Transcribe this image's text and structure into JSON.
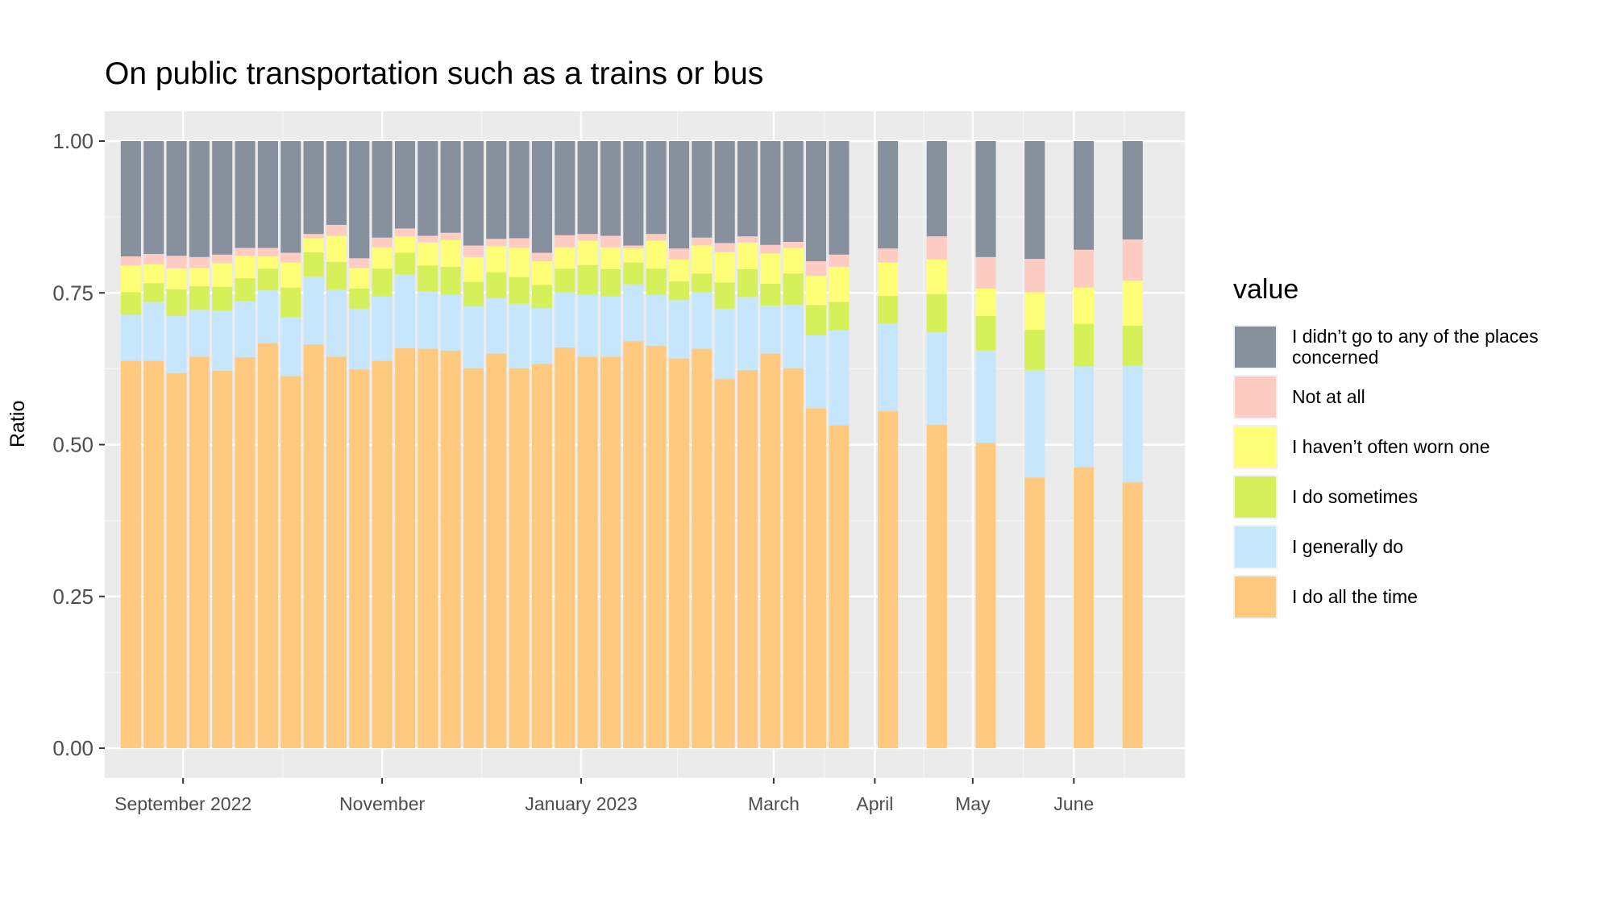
{
  "chart_data": {
    "type": "bar",
    "title": "On public transportation such as a trains or bus",
    "xlabel": "",
    "ylabel": "Ratio",
    "ylim": [
      0,
      1
    ],
    "yticks": [
      "0.00",
      "0.25",
      "0.50",
      "0.75",
      "1.00"
    ],
    "stacked": true,
    "grid": true,
    "legend_title": "value",
    "legend_position": "right",
    "x_axis_type": "date",
    "xlim": [
      "2022-08-08",
      "2023-07-05"
    ],
    "x_ticks": [
      {
        "date": "2022-09-01",
        "label": "September 2022"
      },
      {
        "date": "2022-11-01",
        "label": "November"
      },
      {
        "date": "2023-01-01",
        "label": "January 2023"
      },
      {
        "date": "2023-03-01",
        "label": "March"
      },
      {
        "date": "2023-04-01",
        "label": "April"
      },
      {
        "date": "2023-05-01",
        "label": "May"
      },
      {
        "date": "2023-06-01",
        "label": "June"
      }
    ],
    "x": [
      "2022-08-16",
      "2022-08-23",
      "2022-08-30",
      "2022-09-06",
      "2022-09-13",
      "2022-09-20",
      "2022-09-27",
      "2022-10-04",
      "2022-10-11",
      "2022-10-18",
      "2022-10-25",
      "2022-11-01",
      "2022-11-08",
      "2022-11-15",
      "2022-11-22",
      "2022-11-29",
      "2022-12-06",
      "2022-12-13",
      "2022-12-20",
      "2022-12-27",
      "2023-01-03",
      "2023-01-10",
      "2023-01-17",
      "2023-01-24",
      "2023-01-31",
      "2023-02-07",
      "2023-02-14",
      "2023-02-21",
      "2023-02-28",
      "2023-03-07",
      "2023-03-14",
      "2023-03-21",
      "2023-04-05",
      "2023-04-20",
      "2023-05-05",
      "2023-05-20",
      "2023-06-04",
      "2023-06-19"
    ],
    "series": [
      {
        "name": "I do all the time",
        "color": "#ffca80",
        "values": [
          0.638,
          0.638,
          0.618,
          0.645,
          0.622,
          0.644,
          0.667,
          0.613,
          0.665,
          0.645,
          0.624,
          0.638,
          0.659,
          0.658,
          0.655,
          0.626,
          0.65,
          0.626,
          0.633,
          0.66,
          0.645,
          0.645,
          0.67,
          0.663,
          0.642,
          0.658,
          0.608,
          0.623,
          0.65,
          0.626,
          0.56,
          0.532,
          0.555,
          0.533,
          0.503,
          0.446,
          0.463,
          0.438
        ]
      },
      {
        "name": "I generally do",
        "color": "#c6e6fd",
        "values": [
          0.076,
          0.097,
          0.094,
          0.077,
          0.098,
          0.093,
          0.087,
          0.097,
          0.112,
          0.11,
          0.1,
          0.106,
          0.121,
          0.094,
          0.092,
          0.102,
          0.091,
          0.106,
          0.092,
          0.091,
          0.102,
          0.099,
          0.094,
          0.084,
          0.096,
          0.093,
          0.116,
          0.12,
          0.079,
          0.104,
          0.12,
          0.156,
          0.145,
          0.152,
          0.152,
          0.177,
          0.166,
          0.192
        ]
      },
      {
        "name": "I do sometimes",
        "color": "#d6f05a",
        "values": [
          0.037,
          0.031,
          0.044,
          0.039,
          0.04,
          0.037,
          0.036,
          0.049,
          0.04,
          0.046,
          0.033,
          0.046,
          0.036,
          0.043,
          0.046,
          0.04,
          0.043,
          0.044,
          0.038,
          0.039,
          0.049,
          0.045,
          0.036,
          0.043,
          0.031,
          0.031,
          0.043,
          0.046,
          0.036,
          0.052,
          0.05,
          0.047,
          0.045,
          0.063,
          0.057,
          0.066,
          0.07,
          0.066
        ]
      },
      {
        "name": "I haven’t often worn one",
        "color": "#feff77",
        "values": [
          0.044,
          0.031,
          0.034,
          0.03,
          0.039,
          0.037,
          0.02,
          0.041,
          0.023,
          0.043,
          0.034,
          0.035,
          0.027,
          0.038,
          0.044,
          0.041,
          0.043,
          0.048,
          0.039,
          0.035,
          0.04,
          0.036,
          0.023,
          0.046,
          0.036,
          0.046,
          0.05,
          0.044,
          0.05,
          0.042,
          0.048,
          0.058,
          0.055,
          0.057,
          0.045,
          0.062,
          0.06,
          0.074
        ]
      },
      {
        "name": "Not at all",
        "color": "#ffccc4",
        "values": [
          0.015,
          0.017,
          0.021,
          0.018,
          0.014,
          0.013,
          0.014,
          0.016,
          0.007,
          0.018,
          0.016,
          0.016,
          0.013,
          0.011,
          0.012,
          0.019,
          0.012,
          0.016,
          0.014,
          0.02,
          0.011,
          0.019,
          0.005,
          0.011,
          0.018,
          0.013,
          0.015,
          0.01,
          0.014,
          0.01,
          0.024,
          0.02,
          0.023,
          0.038,
          0.052,
          0.055,
          0.062,
          0.068
        ]
      },
      {
        "name": "I didn’t go to any of the places concerned",
        "color": "#86919d",
        "values": [
          0.19,
          0.186,
          0.189,
          0.191,
          0.187,
          0.176,
          0.176,
          0.184,
          0.153,
          0.138,
          0.193,
          0.159,
          0.144,
          0.156,
          0.151,
          0.172,
          0.161,
          0.16,
          0.184,
          0.155,
          0.153,
          0.156,
          0.172,
          0.153,
          0.177,
          0.159,
          0.168,
          0.157,
          0.171,
          0.166,
          0.198,
          0.187,
          0.177,
          0.157,
          0.191,
          0.194,
          0.179,
          0.162
        ]
      }
    ]
  }
}
